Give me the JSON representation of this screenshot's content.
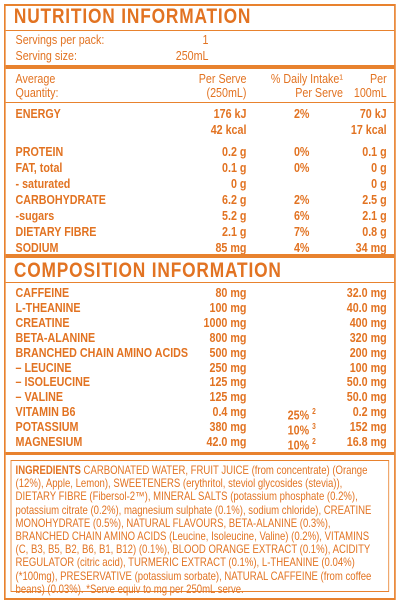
{
  "title": "NUTRITION INFORMATION",
  "servings": [
    {
      "label": "Servings per pack:",
      "value": "1"
    },
    {
      "label": "Serving size:",
      "value": "250mL"
    }
  ],
  "header": {
    "quantity": [
      "Average",
      "Quantity:"
    ],
    "per_serve": [
      "Per Serve",
      "(250mL)"
    ],
    "intake": [
      "% Daily Intake¹",
      "Per Serve"
    ],
    "per_100": [
      "Per",
      "100mL"
    ]
  },
  "nutrients": [
    {
      "name": "ENERGY",
      "per_serve": "176 kJ",
      "intake": "2%",
      "per_100": "70 kJ"
    },
    {
      "per_serve": "42 kcal",
      "per_100": "17 kcal"
    },
    {
      "name": "PROTEIN",
      "per_serve": "0.2 g",
      "intake": "0%",
      "per_100": "0.1 g"
    },
    {
      "name": "FAT, total",
      "per_serve": "0.1 g",
      "intake": "0%",
      "per_100": "0 g"
    },
    {
      "name": "- saturated",
      "per_serve": "0 g",
      "per_100": "0 g"
    },
    {
      "name": "CARBOHYDRATE",
      "per_serve": "6.2 g",
      "intake": "2%",
      "per_100": "2.5 g"
    },
    {
      "name": "-sugars",
      "per_serve": "5.2 g",
      "intake": "6%",
      "per_100": "2.1 g"
    },
    {
      "name": "DIETARY FIBRE",
      "per_serve": "2.1 g",
      "intake": "7%",
      "per_100": "0.8 g"
    },
    {
      "name": "SODIUM",
      "per_serve": "85 mg",
      "intake": "4%",
      "per_100": "34 mg"
    }
  ],
  "composition_title": "COMPOSITION INFORMATION",
  "composition": [
    {
      "name": "CAFFEINE",
      "per_serve": "80 mg",
      "per_100": "32.0 mg"
    },
    {
      "name": "L-THEANINE",
      "per_serve": "100 mg",
      "per_100": "40.0 mg"
    },
    {
      "name": "CREATINE",
      "per_serve": "1000 mg",
      "per_100": "400 mg"
    },
    {
      "name": "BETA-ALANINE",
      "per_serve": "800 mg",
      "per_100": "320 mg"
    },
    {
      "name": "BRANCHED CHAIN AMINO ACIDS",
      "per_serve": "500 mg",
      "per_100": "200 mg"
    },
    {
      "name": "– LEUCINE",
      "per_serve": "250 mg",
      "per_100": "100 mg"
    },
    {
      "name": "– ISOLEUCINE",
      "per_serve": "125 mg",
      "per_100": "50.0 mg"
    },
    {
      "name": "– VALINE",
      "per_serve": "125 mg",
      "per_100": "50.0 mg"
    },
    {
      "name": "VITAMIN B6",
      "per_serve": "0.4 mg",
      "intake": "25%",
      "note": "2",
      "per_100": "0.2 mg"
    },
    {
      "name": "POTASSIUM",
      "per_serve": "380 mg",
      "intake": "10%",
      "note": "3",
      "per_100": "152 mg"
    },
    {
      "name": "MAGNESIUM",
      "per_serve": "42.0 mg",
      "intake": "10%",
      "note": "2",
      "per_100": "16.8 mg"
    }
  ],
  "ingredients": {
    "heading": "INGREDIENTS",
    "text": "CARBONATED WATER, FRUIT JUICE (from concentrate) (Orange (12%), Apple, Lemon), SWEETENERS (erythritol, steviol glycosides (stevia)), DIETARY FIBRE (Fibersol-2™), MINERAL SALTS (potassium phosphate (0.2%), potassium citrate (0.2%), magnesium sulphate (0.1%), sodium chloride), CREATINE MONOHYDRATE (0.5%), NATURAL FLAVOURS, BETA-ALANINE (0.3%), BRANCHED CHAIN AMINO ACIDS (Leucine, Isoleucine, Valine) (0.2%), VITAMINS (C, B3, B5, B2, B6, B1, B12) (0.1%), BLOOD ORANGE EXTRACT (0.1%), ACIDITY REGULATOR (citric acid), TURMERIC EXTRACT (0.1%), L-THEANINE (0.04%) (*100mg), PRESERVATIVE (potassium sorbate), NATURAL CAFFEINE (from coffee beans) (0.03%). *Serve equiv to mg per 250mL serve."
  }
}
